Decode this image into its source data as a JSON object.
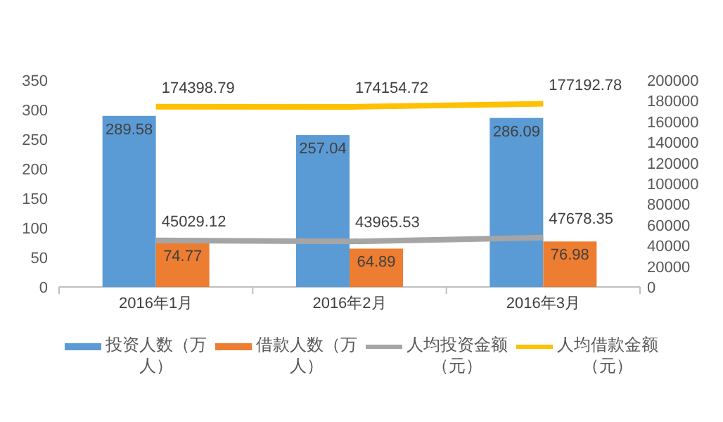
{
  "chart_data": {
    "type": "bar",
    "categories": [
      "2016年1月",
      "2016年2月",
      "2016年3月"
    ],
    "series": [
      {
        "name": "投资人数（万人）",
        "color": "#5b9bd5",
        "values": [
          289.58,
          257.04,
          286.09
        ]
      },
      {
        "name": "借款人数（万人）",
        "color": "#ed7d31",
        "values": [
          74.77,
          64.89,
          76.98
        ]
      },
      {
        "name": "人均投资金额（元）",
        "color": "#a5a5a5",
        "type": "line",
        "axis": "y2",
        "values": [
          45029.12,
          43965.53,
          47678.35
        ]
      },
      {
        "name": "人均借款金额（元）",
        "color": "#ffc000",
        "type": "line",
        "axis": "y2",
        "values": [
          174398.79,
          174154.72,
          177192.78
        ]
      }
    ],
    "ylim": [
      0,
      350
    ],
    "yticks": [
      0,
      50,
      100,
      150,
      200,
      250,
      300,
      350
    ],
    "y2lim": [
      0,
      200000
    ],
    "y2ticks": [
      0,
      20000,
      40000,
      60000,
      80000,
      100000,
      120000,
      140000,
      160000,
      180000,
      200000
    ],
    "data_labels": true,
    "legend": "bottom",
    "grid": false
  }
}
